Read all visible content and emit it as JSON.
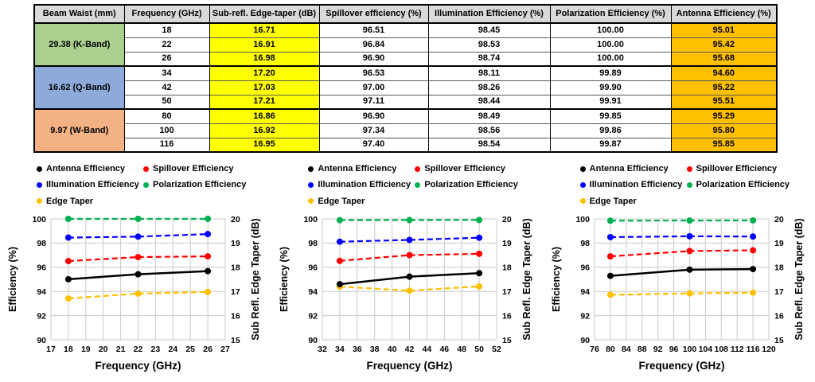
{
  "table": {
    "headers": [
      "Beam Waist (mm)",
      "Frequency (GHz)",
      "Sub-refl. Edge-taper (dB)",
      "Spillover efficiency (%)",
      "Illumination Efficiency (%)",
      "Polarization Efficiency (%)",
      "Antenna Efficiency (%)"
    ],
    "header_bg": "#D9D9D9",
    "edge_taper_bg": "#FFFF00",
    "antenna_bg": "#FFC000",
    "groups": [
      {
        "beam_waist": "29.38 (K-Band)",
        "band_color": "#A9D08E",
        "rows": [
          {
            "frequency": "18",
            "edge_taper": "16.71",
            "spillover": "96.51",
            "illumination": "98.45",
            "polarization": "100.00",
            "antenna": "95.01"
          },
          {
            "frequency": "22",
            "edge_taper": "16.91",
            "spillover": "96.84",
            "illumination": "98.53",
            "polarization": "100.00",
            "antenna": "95.42"
          },
          {
            "frequency": "26",
            "edge_taper": "16.98",
            "spillover": "96.90",
            "illumination": "98.74",
            "polarization": "100.00",
            "antenna": "95.68"
          }
        ]
      },
      {
        "beam_waist": "16.62 (Q-Band)",
        "band_color": "#8EAADB",
        "rows": [
          {
            "frequency": "34",
            "edge_taper": "17.20",
            "spillover": "96.53",
            "illumination": "98.11",
            "polarization": "99.89",
            "antenna": "94.60"
          },
          {
            "frequency": "42",
            "edge_taper": "17.03",
            "spillover": "97.00",
            "illumination": "98.26",
            "polarization": "99.90",
            "antenna": "95.22"
          },
          {
            "frequency": "50",
            "edge_taper": "17.21",
            "spillover": "97.11",
            "illumination": "98.44",
            "polarization": "99.91",
            "antenna": "95.51"
          }
        ]
      },
      {
        "beam_waist": "9.97 (W-Band)",
        "band_color": "#F4B183",
        "rows": [
          {
            "frequency": "80",
            "edge_taper": "16.86",
            "spillover": "96.90",
            "illumination": "98.49",
            "polarization": "99.85",
            "antenna": "95.29"
          },
          {
            "frequency": "100",
            "edge_taper": "16.92",
            "spillover": "97.34",
            "illumination": "98.56",
            "polarization": "99.86",
            "antenna": "95.80"
          },
          {
            "frequency": "116",
            "edge_taper": "16.95",
            "spillover": "97.40",
            "illumination": "98.54",
            "polarization": "99.87",
            "antenna": "95.85"
          }
        ]
      }
    ]
  },
  "series_colors": {
    "Antenna Efficiency": "#000000",
    "Spillover Efficiency": "#FF0000",
    "Illumination Efficiency": "#0000FF",
    "Polarization Efficiency": "#00B050",
    "Edge Taper": "#FFC000"
  },
  "legend_rows": [
    [
      "Antenna Efficiency",
      "Spillover Efficiency"
    ],
    [
      "Illumination Efficiency",
      "Polarization Efficiency"
    ],
    [
      "Edge Taper"
    ]
  ],
  "chart_data": [
    {
      "type": "line",
      "title": "",
      "xlabel": "Frequency (GHz)",
      "ylabel_left": "Efficiency (%)",
      "ylabel_right": "Sub Refl. Edge Taper (dB)",
      "xlim": [
        17,
        27
      ],
      "xticks": [
        17,
        18,
        19,
        20,
        21,
        22,
        23,
        24,
        25,
        26,
        27
      ],
      "ylim_left": [
        90,
        100
      ],
      "yticks_left": [
        90,
        92,
        94,
        96,
        98,
        100
      ],
      "ylim_right": [
        15,
        20
      ],
      "yticks_right": [
        15,
        16,
        17,
        18,
        19,
        20
      ],
      "grid": true,
      "legend_position": "top",
      "x": [
        18,
        22,
        26
      ],
      "series": [
        {
          "name": "Antenna Efficiency",
          "axis": "left",
          "color": "#000000",
          "style": "solid",
          "values": [
            95.01,
            95.42,
            95.68
          ]
        },
        {
          "name": "Spillover Efficiency",
          "axis": "left",
          "color": "#FF0000",
          "style": "dashed",
          "values": [
            96.51,
            96.84,
            96.9
          ]
        },
        {
          "name": "Illumination Efficiency",
          "axis": "left",
          "color": "#0000FF",
          "style": "dashed",
          "values": [
            98.45,
            98.53,
            98.74
          ]
        },
        {
          "name": "Polarization Efficiency",
          "axis": "left",
          "color": "#00B050",
          "style": "dashed",
          "values": [
            100.0,
            100.0,
            100.0
          ]
        },
        {
          "name": "Edge Taper",
          "axis": "right",
          "color": "#FFC000",
          "style": "dashed",
          "values": [
            16.71,
            16.91,
            16.98
          ]
        }
      ]
    },
    {
      "type": "line",
      "title": "",
      "xlabel": "Frequency (GHz)",
      "ylabel_left": "Efficiency (%)",
      "ylabel_right": "Sub Refl. Edge Taper (dB)",
      "xlim": [
        32,
        52
      ],
      "xticks": [
        32,
        34,
        36,
        38,
        40,
        42,
        44,
        46,
        48,
        50,
        52
      ],
      "ylim_left": [
        90,
        100
      ],
      "yticks_left": [
        90,
        92,
        94,
        96,
        98,
        100
      ],
      "ylim_right": [
        15,
        20
      ],
      "yticks_right": [
        15,
        16,
        17,
        18,
        19,
        20
      ],
      "grid": true,
      "legend_position": "top",
      "x": [
        34,
        42,
        50
      ],
      "series": [
        {
          "name": "Antenna Efficiency",
          "axis": "left",
          "color": "#000000",
          "style": "solid",
          "values": [
            94.6,
            95.22,
            95.51
          ]
        },
        {
          "name": "Spillover Efficiency",
          "axis": "left",
          "color": "#FF0000",
          "style": "dashed",
          "values": [
            96.53,
            97.0,
            97.11
          ]
        },
        {
          "name": "Illumination Efficiency",
          "axis": "left",
          "color": "#0000FF",
          "style": "dashed",
          "values": [
            98.11,
            98.26,
            98.44
          ]
        },
        {
          "name": "Polarization Efficiency",
          "axis": "left",
          "color": "#00B050",
          "style": "dashed",
          "values": [
            99.89,
            99.9,
            99.91
          ]
        },
        {
          "name": "Edge Taper",
          "axis": "right",
          "color": "#FFC000",
          "style": "dashed",
          "values": [
            17.2,
            17.03,
            17.21
          ]
        }
      ]
    },
    {
      "type": "line",
      "title": "",
      "xlabel": "Frequency (GHz)",
      "ylabel_left": "Efficiency (%)",
      "ylabel_right": "Sub Refl. Edge Taper (dB)",
      "xlim": [
        76,
        120
      ],
      "xticks": [
        76,
        80,
        84,
        88,
        92,
        96,
        100,
        104,
        108,
        112,
        116,
        120
      ],
      "ylim_left": [
        90,
        100
      ],
      "yticks_left": [
        90,
        92,
        94,
        96,
        98,
        100
      ],
      "ylim_right": [
        15,
        20
      ],
      "yticks_right": [
        15,
        16,
        17,
        18,
        19,
        20
      ],
      "grid": true,
      "legend_position": "top",
      "x": [
        80,
        100,
        116
      ],
      "series": [
        {
          "name": "Antenna Efficiency",
          "axis": "left",
          "color": "#000000",
          "style": "solid",
          "values": [
            95.29,
            95.8,
            95.85
          ]
        },
        {
          "name": "Spillover Efficiency",
          "axis": "left",
          "color": "#FF0000",
          "style": "dashed",
          "values": [
            96.9,
            97.34,
            97.4
          ]
        },
        {
          "name": "Illumination Efficiency",
          "axis": "left",
          "color": "#0000FF",
          "style": "dashed",
          "values": [
            98.49,
            98.56,
            98.54
          ]
        },
        {
          "name": "Polarization Efficiency",
          "axis": "left",
          "color": "#00B050",
          "style": "dashed",
          "values": [
            99.85,
            99.86,
            99.87
          ]
        },
        {
          "name": "Edge Taper",
          "axis": "right",
          "color": "#FFC000",
          "style": "dashed",
          "values": [
            16.86,
            16.92,
            16.95
          ]
        }
      ]
    }
  ],
  "layout_colors": {
    "grid": "#C9C9C9"
  }
}
